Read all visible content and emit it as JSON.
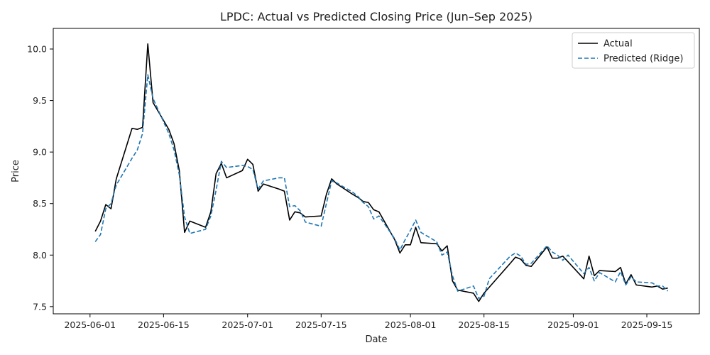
{
  "chart_data": {
    "type": "line",
    "title": "LPDC: Actual vs Predicted Closing Price (Jun–Sep 2025)",
    "xlabel": "Date",
    "ylabel": "Price",
    "xlim": [
      "2025-05-25",
      "2025-09-25"
    ],
    "ylim": [
      7.43,
      10.2
    ],
    "grid": false,
    "legend_position": "top-right",
    "x_ticks": [
      "2025-06-01",
      "2025-06-15",
      "2025-07-01",
      "2025-07-15",
      "2025-08-01",
      "2025-08-15",
      "2025-09-01",
      "2025-09-15"
    ],
    "y_ticks": [
      "7.5",
      "8.0",
      "8.5",
      "9.0",
      "9.5",
      "10.0"
    ],
    "series": [
      {
        "name": "Actual",
        "color": "#000000",
        "style": "solid",
        "points": [
          [
            "2025-06-02",
            8.23
          ],
          [
            "2025-06-03",
            8.33
          ],
          [
            "2025-06-04",
            8.49
          ],
          [
            "2025-06-05",
            8.45
          ],
          [
            "2025-06-06",
            8.74
          ],
          [
            "2025-06-09",
            9.23
          ],
          [
            "2025-06-10",
            9.22
          ],
          [
            "2025-06-11",
            9.24
          ],
          [
            "2025-06-12",
            10.05
          ],
          [
            "2025-06-13",
            9.48
          ],
          [
            "2025-06-16",
            9.22
          ],
          [
            "2025-06-17",
            9.08
          ],
          [
            "2025-06-18",
            8.82
          ],
          [
            "2025-06-19",
            8.22
          ],
          [
            "2025-06-20",
            8.33
          ],
          [
            "2025-06-23",
            8.27
          ],
          [
            "2025-06-24",
            8.42
          ],
          [
            "2025-06-25",
            8.79
          ],
          [
            "2025-06-26",
            8.89
          ],
          [
            "2025-06-27",
            8.75
          ],
          [
            "2025-06-30",
            8.82
          ],
          [
            "2025-07-01",
            8.93
          ],
          [
            "2025-07-02",
            8.88
          ],
          [
            "2025-07-03",
            8.62
          ],
          [
            "2025-07-04",
            8.69
          ],
          [
            "2025-07-07",
            8.64
          ],
          [
            "2025-07-08",
            8.62
          ],
          [
            "2025-07-09",
            8.34
          ],
          [
            "2025-07-10",
            8.42
          ],
          [
            "2025-07-11",
            8.41
          ],
          [
            "2025-07-12",
            8.37
          ],
          [
            "2025-07-15",
            8.38
          ],
          [
            "2025-07-16",
            8.59
          ],
          [
            "2025-07-17",
            8.74
          ],
          [
            "2025-07-18",
            8.69
          ],
          [
            "2025-07-21",
            8.59
          ],
          [
            "2025-07-22",
            8.56
          ],
          [
            "2025-07-23",
            8.52
          ],
          [
            "2025-07-24",
            8.51
          ],
          [
            "2025-07-25",
            8.44
          ],
          [
            "2025-07-26",
            8.42
          ],
          [
            "2025-07-29",
            8.15
          ],
          [
            "2025-07-30",
            8.02
          ],
          [
            "2025-07-31",
            8.1
          ],
          [
            "2025-08-01",
            8.1
          ],
          [
            "2025-08-02",
            8.27
          ],
          [
            "2025-08-03",
            8.12
          ],
          [
            "2025-08-06",
            8.11
          ],
          [
            "2025-08-07",
            8.04
          ],
          [
            "2025-08-08",
            8.09
          ],
          [
            "2025-08-09",
            7.75
          ],
          [
            "2025-08-10",
            7.66
          ],
          [
            "2025-08-13",
            7.63
          ],
          [
            "2025-08-14",
            7.55
          ],
          [
            "2025-08-15",
            7.63
          ],
          [
            "2025-08-20",
            7.92
          ],
          [
            "2025-08-21",
            7.98
          ],
          [
            "2025-08-22",
            7.96
          ],
          [
            "2025-08-23",
            7.9
          ],
          [
            "2025-08-24",
            7.89
          ],
          [
            "2025-08-27",
            8.08
          ],
          [
            "2025-08-28",
            7.97
          ],
          [
            "2025-08-29",
            7.97
          ],
          [
            "2025-08-30",
            7.99
          ],
          [
            "2025-09-03",
            7.77
          ],
          [
            "2025-09-04",
            7.99
          ],
          [
            "2025-09-05",
            7.8
          ],
          [
            "2025-09-06",
            7.85
          ],
          [
            "2025-09-09",
            7.84
          ],
          [
            "2025-09-10",
            7.88
          ],
          [
            "2025-09-11",
            7.72
          ],
          [
            "2025-09-12",
            7.81
          ],
          [
            "2025-09-13",
            7.71
          ],
          [
            "2025-09-16",
            7.69
          ],
          [
            "2025-09-17",
            7.7
          ],
          [
            "2025-09-18",
            7.67
          ],
          [
            "2025-09-19",
            7.68
          ]
        ]
      },
      {
        "name": "Predicted (Ridge)",
        "color": "#1f77b4",
        "style": "dashed",
        "points": [
          [
            "2025-06-02",
            8.13
          ],
          [
            "2025-06-03",
            8.2
          ],
          [
            "2025-06-04",
            8.45
          ],
          [
            "2025-06-05",
            8.5
          ],
          [
            "2025-06-06",
            8.68
          ],
          [
            "2025-06-09",
            8.94
          ],
          [
            "2025-06-10",
            9.02
          ],
          [
            "2025-06-11",
            9.18
          ],
          [
            "2025-06-12",
            9.75
          ],
          [
            "2025-06-13",
            9.52
          ],
          [
            "2025-06-16",
            9.18
          ],
          [
            "2025-06-17",
            9.02
          ],
          [
            "2025-06-18",
            8.78
          ],
          [
            "2025-06-19",
            8.37
          ],
          [
            "2025-06-20",
            8.21
          ],
          [
            "2025-06-23",
            8.25
          ],
          [
            "2025-06-24",
            8.38
          ],
          [
            "2025-06-25",
            8.63
          ],
          [
            "2025-06-26",
            8.91
          ],
          [
            "2025-06-27",
            8.85
          ],
          [
            "2025-06-30",
            8.87
          ],
          [
            "2025-07-01",
            8.86
          ],
          [
            "2025-07-02",
            8.83
          ],
          [
            "2025-07-03",
            8.64
          ],
          [
            "2025-07-04",
            8.72
          ],
          [
            "2025-07-07",
            8.75
          ],
          [
            "2025-07-08",
            8.75
          ],
          [
            "2025-07-09",
            8.47
          ],
          [
            "2025-07-10",
            8.48
          ],
          [
            "2025-07-11",
            8.43
          ],
          [
            "2025-07-12",
            8.32
          ],
          [
            "2025-07-15",
            8.28
          ],
          [
            "2025-07-16",
            8.5
          ],
          [
            "2025-07-17",
            8.72
          ],
          [
            "2025-07-18",
            8.7
          ],
          [
            "2025-07-21",
            8.61
          ],
          [
            "2025-07-22",
            8.57
          ],
          [
            "2025-07-23",
            8.51
          ],
          [
            "2025-07-24",
            8.47
          ],
          [
            "2025-07-25",
            8.35
          ],
          [
            "2025-07-26",
            8.38
          ],
          [
            "2025-07-29",
            8.16
          ],
          [
            "2025-07-30",
            8.05
          ],
          [
            "2025-07-31",
            8.15
          ],
          [
            "2025-08-01",
            8.24
          ],
          [
            "2025-08-02",
            8.34
          ],
          [
            "2025-08-03",
            8.22
          ],
          [
            "2025-08-06",
            8.13
          ],
          [
            "2025-08-07",
            8.0
          ],
          [
            "2025-08-08",
            8.03
          ],
          [
            "2025-08-09",
            7.8
          ],
          [
            "2025-08-10",
            7.65
          ],
          [
            "2025-08-13",
            7.7
          ],
          [
            "2025-08-14",
            7.58
          ],
          [
            "2025-08-15",
            7.6
          ],
          [
            "2025-08-16",
            7.77
          ],
          [
            "2025-08-20",
            7.99
          ],
          [
            "2025-08-21",
            8.02
          ],
          [
            "2025-08-22",
            7.99
          ],
          [
            "2025-08-23",
            7.91
          ],
          [
            "2025-08-24",
            7.92
          ],
          [
            "2025-08-27",
            8.09
          ],
          [
            "2025-08-28",
            8.03
          ],
          [
            "2025-08-29",
            8.0
          ],
          [
            "2025-08-30",
            7.95
          ],
          [
            "2025-08-31",
            8.0
          ],
          [
            "2025-09-03",
            7.82
          ],
          [
            "2025-09-04",
            7.88
          ],
          [
            "2025-09-05",
            7.75
          ],
          [
            "2025-09-06",
            7.83
          ],
          [
            "2025-09-09",
            7.74
          ],
          [
            "2025-09-10",
            7.84
          ],
          [
            "2025-09-11",
            7.71
          ],
          [
            "2025-09-12",
            7.79
          ],
          [
            "2025-09-13",
            7.74
          ],
          [
            "2025-09-16",
            7.73
          ],
          [
            "2025-09-17",
            7.7
          ],
          [
            "2025-09-18",
            7.7
          ],
          [
            "2025-09-19",
            7.65
          ]
        ]
      }
    ]
  }
}
